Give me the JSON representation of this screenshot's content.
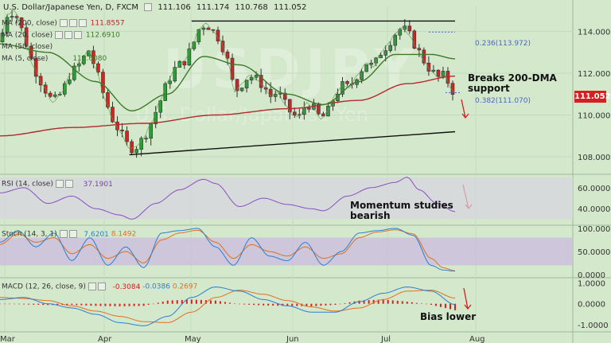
{
  "header": {
    "symbol": "U.S. Dollar/Japanese Yen, D, FXCM",
    "open": "111.106",
    "high": "111.174",
    "low": "110.768",
    "close": "111.052"
  },
  "ma_labels": [
    {
      "label": "MA (200, close)",
      "value": "111.8557",
      "color": "#b5282b"
    },
    {
      "label": "MA (20, close)",
      "value": "112.6910",
      "color": "#3d7a2a"
    },
    {
      "label": "MA (50, close)",
      "value": "",
      "color": "#3d7a2a"
    },
    {
      "label": "MA (5, close)",
      "value": "111.6080",
      "color": "#3d7a2a"
    }
  ],
  "last_price": "111.052",
  "fib_labels": [
    {
      "label": "0.236(113.972)",
      "price": 113.972
    },
    {
      "label": "0.382(111.070)",
      "price": 111.07
    }
  ],
  "annotations": {
    "breaks": [
      "Breaks 200-DMA",
      "support"
    ],
    "momentum": [
      "Momentum studies",
      "bearish"
    ],
    "bias": "Bias lower"
  },
  "watermark": {
    "big": "USDJPY",
    "small": "U.S. Dollar/Japanese Yen"
  },
  "rsi_label": {
    "text": "RSI (14, close)",
    "value": "37.1901"
  },
  "stoch_label": {
    "text": "Stoch (14, 3, 1)",
    "k": "7.6201",
    "d": "8.1492"
  },
  "macd_label": {
    "text": "MACD (12, 26, close, 9)",
    "hist": "-0.3084",
    "macd": "-0.0386",
    "signal": "0.2697"
  },
  "chart_data": [
    {
      "type": "candlestick",
      "title": "U.S. Dollar/Japanese Yen, D, FXCM",
      "x_ticks": [
        "Mar",
        "Apr",
        "May",
        "Jun",
        "Jul",
        "Aug"
      ],
      "y_ticks": [
        "108.000",
        "110.000",
        "112.000",
        "114.000"
      ],
      "ylim": [
        107.2,
        115.2
      ],
      "close_path": [
        [
          0,
          113.5
        ],
        [
          6,
          114.8
        ],
        [
          12,
          115.0
        ],
        [
          20,
          113.8
        ],
        [
          28,
          112.3
        ],
        [
          36,
          111.4
        ],
        [
          44,
          110.6
        ],
        [
          52,
          111.1
        ],
        [
          58,
          111.9
        ],
        [
          66,
          112.4
        ],
        [
          74,
          113.1
        ],
        [
          80,
          112.2
        ],
        [
          88,
          110.7
        ],
        [
          94,
          109.8
        ],
        [
          100,
          109.2
        ],
        [
          108,
          108.4
        ],
        [
          114,
          108.5
        ],
        [
          120,
          108.9
        ],
        [
          126,
          109.6
        ],
        [
          134,
          110.7
        ],
        [
          140,
          111.6
        ],
        [
          146,
          112.2
        ],
        [
          154,
          112.6
        ],
        [
          160,
          113.2
        ],
        [
          166,
          114.1
        ],
        [
          172,
          114.4
        ],
        [
          178,
          114.0
        ],
        [
          184,
          113.6
        ],
        [
          190,
          112.6
        ],
        [
          196,
          111.1
        ],
        [
          202,
          111.5
        ],
        [
          208,
          111.9
        ],
        [
          214,
          111.7
        ],
        [
          220,
          111.4
        ],
        [
          226,
          110.9
        ],
        [
          232,
          111.1
        ],
        [
          238,
          110.5
        ],
        [
          244,
          110.0
        ],
        [
          250,
          109.9
        ],
        [
          256,
          110.6
        ],
        [
          262,
          110.3
        ],
        [
          268,
          109.8
        ],
        [
          274,
          110.2
        ],
        [
          280,
          111.0
        ],
        [
          286,
          111.4
        ],
        [
          292,
          111.3
        ],
        [
          298,
          111.9
        ],
        [
          306,
          112.5
        ],
        [
          312,
          112.3
        ],
        [
          318,
          113.0
        ],
        [
          324,
          113.4
        ],
        [
          330,
          113.9
        ],
        [
          336,
          114.2
        ],
        [
          342,
          113.8
        ],
        [
          348,
          113.2
        ],
        [
          354,
          112.6
        ],
        [
          360,
          112.1
        ],
        [
          366,
          111.8
        ],
        [
          372,
          111.9
        ],
        [
          376,
          111.3
        ],
        [
          380,
          111.05
        ]
      ],
      "overlays": {
        "ma_slow_path": [
          [
            0,
            109.0
          ],
          [
            60,
            109.4
          ],
          [
            120,
            109.6
          ],
          [
            180,
            110.0
          ],
          [
            240,
            110.3
          ],
          [
            300,
            110.7
          ],
          [
            340,
            111.5
          ],
          [
            380,
            111.86
          ]
        ],
        "ma_mid_path": [
          [
            0,
            113.4
          ],
          [
            40,
            113.0
          ],
          [
            80,
            111.6
          ],
          [
            110,
            110.2
          ],
          [
            140,
            111.0
          ],
          [
            170,
            112.8
          ],
          [
            200,
            112.4
          ],
          [
            240,
            111.0
          ],
          [
            270,
            110.5
          ],
          [
            300,
            111.6
          ],
          [
            330,
            112.9
          ],
          [
            360,
            112.9
          ],
          [
            380,
            112.69
          ]
        ],
        "support_line": [
          [
            108,
            108.1
          ],
          [
            380,
            109.2
          ]
        ],
        "resistance_line": [
          [
            160,
            114.5
          ],
          [
            380,
            114.5
          ]
        ],
        "fib_236": 113.972,
        "fib_382": 111.07
      }
    },
    {
      "type": "line",
      "title": "RSI (14, close)",
      "y_ticks": [
        "40.0000",
        "60.0000"
      ],
      "ylim": [
        25,
        72
      ],
      "x": [
        0,
        20,
        40,
        60,
        80,
        100,
        110,
        130,
        150,
        170,
        180,
        200,
        220,
        240,
        260,
        270,
        290,
        310,
        330,
        340,
        350,
        365,
        380
      ],
      "values": [
        55,
        60,
        45,
        52,
        40,
        34,
        30,
        45,
        58,
        68,
        64,
        42,
        50,
        44,
        40,
        38,
        52,
        60,
        65,
        70,
        58,
        45,
        37.19
      ]
    },
    {
      "type": "line",
      "title": "Stoch (14, 3, 1)",
      "y_ticks": [
        "0.0000",
        "50.0000",
        "100.0000"
      ],
      "ylim": [
        -5,
        105
      ],
      "x": [
        0,
        15,
        30,
        45,
        60,
        75,
        90,
        105,
        120,
        135,
        150,
        165,
        180,
        195,
        210,
        225,
        240,
        255,
        270,
        285,
        300,
        315,
        330,
        345,
        360,
        370,
        380
      ],
      "series": [
        {
          "name": "%K",
          "values": [
            70,
            95,
            60,
            90,
            30,
            80,
            20,
            60,
            15,
            90,
            95,
            100,
            60,
            20,
            80,
            40,
            30,
            70,
            20,
            50,
            90,
            95,
            100,
            85,
            20,
            10,
            7.62
          ]
        },
        {
          "name": "%D",
          "values": [
            65,
            88,
            70,
            80,
            45,
            65,
            35,
            50,
            25,
            75,
            90,
            96,
            70,
            35,
            65,
            50,
            40,
            60,
            35,
            45,
            80,
            92,
            97,
            88,
            35,
            15,
            8.15
          ]
        }
      ]
    },
    {
      "type": "line",
      "title": "MACD (12, 26, close, 9)",
      "y_ticks": [
        "-1.0000",
        "0.0000",
        "1.0000"
      ],
      "ylim": [
        -1.3,
        1.2
      ],
      "x": [
        0,
        20,
        40,
        60,
        80,
        100,
        120,
        140,
        160,
        180,
        200,
        220,
        240,
        260,
        280,
        300,
        320,
        340,
        360,
        380
      ],
      "series": [
        {
          "name": "MACD",
          "values": [
            0.2,
            0.3,
            0.0,
            -0.2,
            -0.5,
            -0.9,
            -1.05,
            -0.6,
            0.3,
            0.8,
            0.6,
            0.2,
            -0.1,
            -0.4,
            -0.4,
            0.1,
            0.5,
            0.8,
            0.6,
            -0.04
          ]
        },
        {
          "name": "Signal",
          "values": [
            0.3,
            0.25,
            0.15,
            -0.1,
            -0.35,
            -0.6,
            -0.85,
            -0.9,
            -0.4,
            0.3,
            0.65,
            0.45,
            0.15,
            -0.15,
            -0.35,
            -0.2,
            0.2,
            0.6,
            0.65,
            0.27
          ]
        }
      ],
      "histogram": [
        0,
        -0.03,
        -0.06,
        -0.05,
        -0.1,
        -0.12,
        -0.1,
        0.15,
        0.2,
        0.15,
        -0.02,
        -0.08,
        -0.1,
        -0.12,
        -0.05,
        0.15,
        0.2,
        0.1,
        -0.05,
        -0.31
      ]
    }
  ]
}
